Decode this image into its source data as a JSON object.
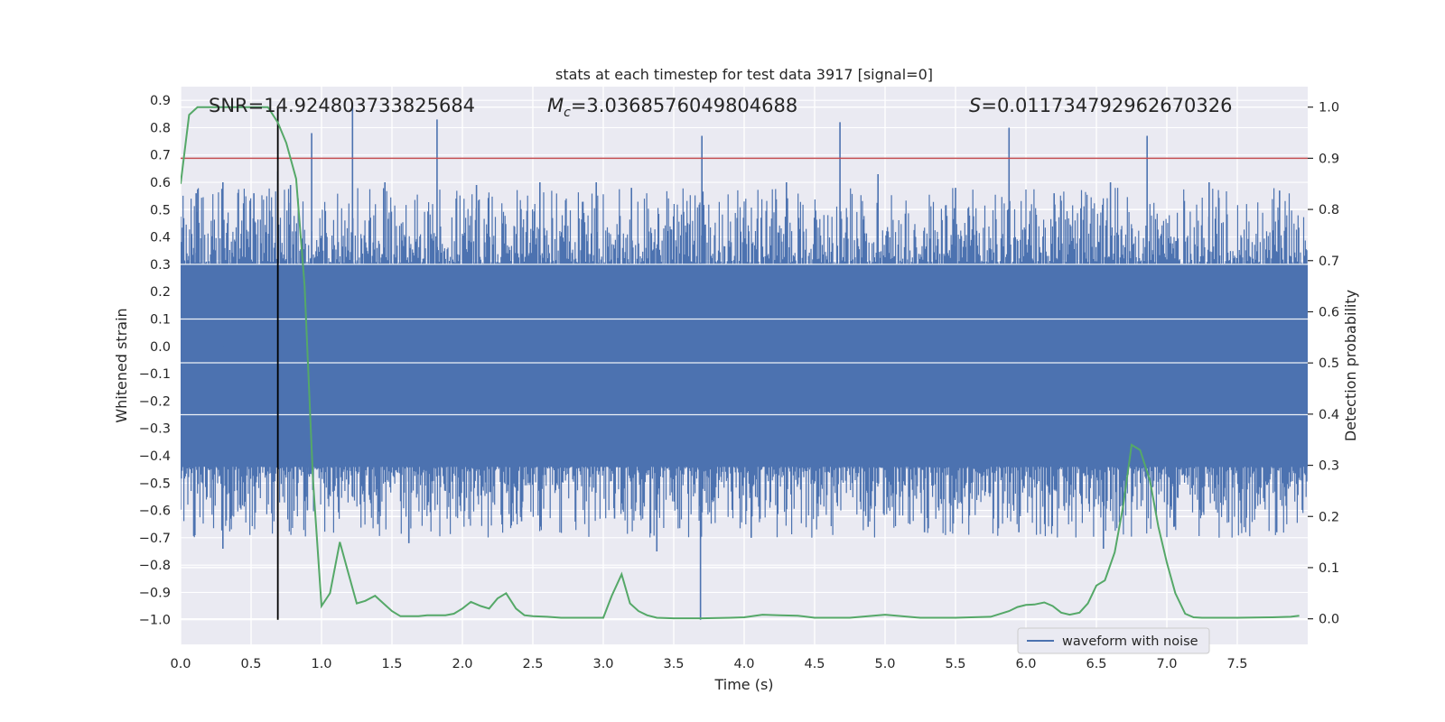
{
  "chart_data": {
    "type": "line",
    "title": "stats at each timestep for test data 3917 [signal=0]",
    "xlabel": "Time (s)",
    "ylabel": "Whitened strain",
    "y2label": "Detection probability",
    "xlim": [
      0.0,
      8.0
    ],
    "ylim": [
      -1.09,
      0.95
    ],
    "y2lim": [
      -0.05,
      1.04
    ],
    "xticks": [
      "0.0",
      "0.5",
      "1.0",
      "1.5",
      "2.0",
      "2.5",
      "3.0",
      "3.5",
      "4.0",
      "4.5",
      "5.0",
      "5.5",
      "6.0",
      "6.5",
      "7.0",
      "7.5"
    ],
    "yticks": [
      "0.9",
      "0.8",
      "0.7",
      "0.6",
      "0.5",
      "0.4",
      "0.3",
      "0.2",
      "0.1",
      "0.0",
      "−0.1",
      "−0.2",
      "−0.3",
      "−0.4",
      "−0.5",
      "−0.6",
      "−0.7",
      "−0.8",
      "−0.9",
      "−1.0"
    ],
    "y2ticks": [
      "1.0",
      "0.9",
      "0.8",
      "0.7",
      "0.6",
      "0.5",
      "0.4",
      "0.3",
      "0.2",
      "0.1",
      "0.0"
    ],
    "grid": true,
    "legend": {
      "location": "lower-right",
      "entries": [
        "waveform with noise"
      ]
    },
    "annotations": {
      "snr": "SNR=14.924803733825684",
      "mc_symbol": "M",
      "mc_sub": "c",
      "mc_value": "=3.0368576049804688",
      "s_symbol": "S",
      "s_value": "=0.011734792962670326"
    },
    "threshold_y2": 0.9,
    "marker_time": 0.69,
    "waveform": {
      "name": "waveform with noise",
      "envelope_upper": 0.3,
      "envelope_lower": -0.44,
      "spikes_up": [
        {
          "t": 0.11,
          "v": 0.56
        },
        {
          "t": 0.3,
          "v": 0.6
        },
        {
          "t": 0.52,
          "v": 0.56
        },
        {
          "t": 0.69,
          "v": 0.64
        },
        {
          "t": 0.78,
          "v": 0.59
        },
        {
          "t": 0.93,
          "v": 0.78
        },
        {
          "t": 1.22,
          "v": 0.88
        },
        {
          "t": 1.45,
          "v": 0.6
        },
        {
          "t": 1.82,
          "v": 0.83
        },
        {
          "t": 2.1,
          "v": 0.59
        },
        {
          "t": 2.55,
          "v": 0.6
        },
        {
          "t": 2.95,
          "v": 0.6
        },
        {
          "t": 3.2,
          "v": 0.58
        },
        {
          "t": 3.7,
          "v": 0.77
        },
        {
          "t": 4.3,
          "v": 0.6
        },
        {
          "t": 4.68,
          "v": 0.82
        },
        {
          "t": 4.95,
          "v": 0.63
        },
        {
          "t": 5.5,
          "v": 0.58
        },
        {
          "t": 5.88,
          "v": 0.8
        },
        {
          "t": 6.2,
          "v": 0.56
        },
        {
          "t": 6.6,
          "v": 0.6
        },
        {
          "t": 6.86,
          "v": 0.77
        },
        {
          "t": 7.3,
          "v": 0.6
        },
        {
          "t": 7.8,
          "v": 0.57
        }
      ],
      "spikes_down": [
        {
          "t": 0.3,
          "v": -0.74
        },
        {
          "t": 0.42,
          "v": -0.58
        },
        {
          "t": 0.9,
          "v": -0.6
        },
        {
          "t": 1.4,
          "v": -0.65
        },
        {
          "t": 1.62,
          "v": -0.72
        },
        {
          "t": 2.42,
          "v": -0.64
        },
        {
          "t": 3.08,
          "v": -0.63
        },
        {
          "t": 3.38,
          "v": -0.75
        },
        {
          "t": 3.69,
          "v": -1.0
        },
        {
          "t": 4.05,
          "v": -0.7
        },
        {
          "t": 4.88,
          "v": -0.66
        },
        {
          "t": 5.28,
          "v": -0.68
        },
        {
          "t": 5.95,
          "v": -0.68
        },
        {
          "t": 6.55,
          "v": -0.74
        },
        {
          "t": 7.05,
          "v": -0.66
        },
        {
          "t": 7.78,
          "v": -0.68
        }
      ]
    },
    "probability": {
      "name": "Detection probability",
      "x": [
        0.0,
        0.06,
        0.12,
        0.2,
        0.3,
        0.4,
        0.5,
        0.62,
        0.69,
        0.75,
        0.82,
        0.88,
        0.94,
        1.0,
        1.06,
        1.13,
        1.19,
        1.25,
        1.31,
        1.38,
        1.44,
        1.5,
        1.56,
        1.63,
        1.69,
        1.75,
        1.81,
        1.88,
        1.94,
        2.0,
        2.06,
        2.13,
        2.19,
        2.25,
        2.31,
        2.38,
        2.44,
        2.5,
        2.6,
        2.7,
        2.8,
        2.9,
        3.0,
        3.06,
        3.13,
        3.19,
        3.25,
        3.31,
        3.38,
        3.5,
        3.7,
        3.9,
        4.0,
        4.13,
        4.25,
        4.38,
        4.5,
        4.75,
        5.0,
        5.25,
        5.5,
        5.75,
        5.88,
        5.94,
        6.0,
        6.06,
        6.13,
        6.19,
        6.25,
        6.31,
        6.38,
        6.44,
        6.5,
        6.56,
        6.63,
        6.69,
        6.75,
        6.81,
        6.88,
        6.94,
        7.0,
        7.06,
        7.13,
        7.19,
        7.25,
        7.5,
        7.75,
        7.88,
        7.94
      ],
      "y": [
        0.85,
        0.985,
        1.0,
        1.0,
        1.0,
        1.0,
        1.0,
        1.0,
        0.97,
        0.93,
        0.86,
        0.65,
        0.27,
        0.025,
        0.05,
        0.15,
        0.09,
        0.03,
        0.035,
        0.045,
        0.03,
        0.015,
        0.005,
        0.005,
        0.005,
        0.007,
        0.007,
        0.007,
        0.01,
        0.02,
        0.033,
        0.025,
        0.02,
        0.04,
        0.05,
        0.02,
        0.007,
        0.005,
        0.004,
        0.002,
        0.002,
        0.002,
        0.002,
        0.045,
        0.087,
        0.03,
        0.015,
        0.007,
        0.002,
        0.001,
        0.001,
        0.002,
        0.003,
        0.008,
        0.007,
        0.006,
        0.002,
        0.002,
        0.008,
        0.002,
        0.002,
        0.004,
        0.015,
        0.023,
        0.027,
        0.028,
        0.032,
        0.025,
        0.012,
        0.008,
        0.012,
        0.03,
        0.065,
        0.075,
        0.13,
        0.22,
        0.34,
        0.33,
        0.27,
        0.18,
        0.11,
        0.05,
        0.01,
        0.003,
        0.002,
        0.002,
        0.003,
        0.004,
        0.006
      ]
    },
    "colors": {
      "waveform": "#4c72b0",
      "probability": "#55a868",
      "threshold": "#c44e52",
      "marker": "#000000",
      "axes_bg": "#eaeaf2",
      "grid": "#ffffff",
      "text": "#262626"
    }
  }
}
